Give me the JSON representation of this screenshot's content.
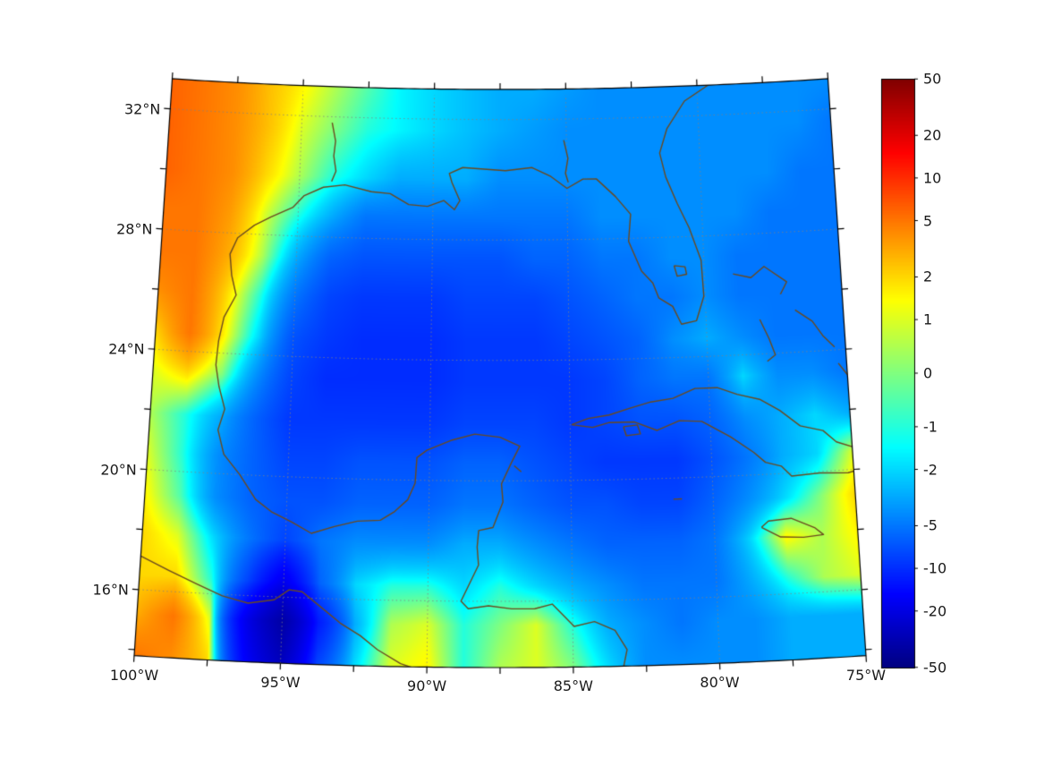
{
  "figure": {
    "background": "#ffffff"
  },
  "chart_data": {
    "type": "heatmap",
    "title": "",
    "lon_range": [
      -100,
      -75
    ],
    "lat_range": [
      13.8,
      33
    ],
    "x_axis": {
      "ticks": [
        {
          "value": -100,
          "label": "100°W"
        },
        {
          "value": -95,
          "label": "95°W"
        },
        {
          "value": -90,
          "label": "90°W"
        },
        {
          "value": -85,
          "label": "85°W"
        },
        {
          "value": -80,
          "label": "80°W"
        },
        {
          "value": -75,
          "label": "75°W"
        }
      ],
      "minor_ticks": [
        -97.5,
        -92.5,
        -87.5,
        -82.5,
        -77.5
      ]
    },
    "y_axis": {
      "ticks": [
        {
          "value": 32,
          "label": "32°N"
        },
        {
          "value": 28,
          "label": "28°N"
        },
        {
          "value": 24,
          "label": "24°N"
        },
        {
          "value": 20,
          "label": "20°N"
        },
        {
          "value": 16,
          "label": "16°N"
        }
      ],
      "minor_ticks": [
        14,
        18,
        22,
        26,
        30
      ]
    },
    "gridline_lons": [
      -95,
      -90,
      -85,
      -80
    ],
    "gridline_lats": [
      16,
      20,
      24,
      28,
      32
    ],
    "colorbar": {
      "scale": "symlog",
      "ticks": [
        {
          "value": 50,
          "label": "50"
        },
        {
          "value": 20,
          "label": "20"
        },
        {
          "value": 10,
          "label": "10"
        },
        {
          "value": 5,
          "label": "5"
        },
        {
          "value": 2,
          "label": "2"
        },
        {
          "value": 1,
          "label": "1"
        },
        {
          "value": 0,
          "label": "0"
        },
        {
          "value": -1,
          "label": "-1"
        },
        {
          "value": -2,
          "label": "-2"
        },
        {
          "value": -5,
          "label": "-5"
        },
        {
          "value": -10,
          "label": "-10"
        },
        {
          "value": -20,
          "label": "-20"
        },
        {
          "value": -50,
          "label": "-50"
        }
      ],
      "colormap": [
        [
          0,
          [
            0,
            0,
            128
          ]
        ],
        [
          0.125,
          [
            0,
            0,
            255
          ]
        ],
        [
          0.375,
          [
            0,
            255,
            255
          ]
        ],
        [
          0.625,
          [
            255,
            255,
            0
          ]
        ],
        [
          0.875,
          [
            255,
            0,
            0
          ]
        ],
        [
          1,
          [
            128,
            0,
            0
          ]
        ]
      ]
    },
    "coast_color": "#6b4a1f",
    "grid": {
      "lons": [
        -100,
        -98.75,
        -97.5,
        -96.25,
        -95,
        -93.75,
        -92.5,
        -91.25,
        -90,
        -88.75,
        -87.5,
        -86.25,
        -85,
        -83.75,
        -82.5,
        -81.25,
        -80,
        -78.75,
        -77.5,
        -76.25,
        -75
      ],
      "lats": [
        13.8,
        15.2,
        16.5,
        17.9,
        19.2,
        20.6,
        21.9,
        23.3,
        24.6,
        26.0,
        27.3,
        28.7,
        30.0,
        31.6,
        33.0
      ],
      "values": [
        [
          5,
          4,
          2,
          -15,
          -28,
          -8,
          -2,
          1,
          1.5,
          -1,
          0.5,
          1,
          0,
          -2,
          -4,
          -4,
          -4,
          -4,
          -3,
          -3,
          -3
        ],
        [
          3,
          5,
          1,
          -18,
          -35,
          -12,
          -3,
          0.5,
          1,
          -1,
          0,
          1,
          -1,
          -3,
          -4,
          -5,
          -4,
          -4,
          -3,
          -3,
          -3
        ],
        [
          2,
          2,
          -1,
          -8,
          -18,
          -6,
          -2,
          -1,
          -1,
          -2,
          -1,
          -2,
          -3,
          -4,
          -5,
          -5,
          -5,
          -3,
          -1,
          0.5,
          1
        ],
        [
          2,
          1,
          -2,
          -5,
          -8,
          -5,
          -4,
          -4,
          -4,
          -3,
          -3,
          -4,
          -5,
          -6,
          -6,
          -6,
          -5,
          -2,
          1.5,
          0.5,
          1.5
        ],
        [
          1.5,
          -0.5,
          -4,
          -6,
          -7,
          -7,
          -6,
          -6,
          -6,
          -5,
          -5,
          -6,
          -7,
          -7,
          -8,
          -8,
          -6,
          -4,
          -2,
          0,
          2
        ],
        [
          1,
          -1,
          -4,
          -6,
          -8,
          -8,
          -7,
          -7,
          -7,
          -6,
          -6,
          -7,
          -8,
          -9,
          -9,
          -9,
          -7,
          -5,
          -3,
          -2,
          1
        ],
        [
          0.5,
          -1,
          -3,
          -6,
          -9,
          -9,
          -9,
          -9,
          -9,
          -8,
          -8,
          -8,
          -9,
          -8,
          -7,
          -7,
          -6,
          -4,
          -3,
          -2,
          -3
        ],
        [
          1,
          2,
          0,
          -4,
          -8,
          -10,
          -10,
          -10,
          -10,
          -9,
          -9,
          -9,
          -9,
          -8,
          -6,
          -5,
          -5,
          -2,
          -4,
          -4,
          -5
        ],
        [
          2,
          5,
          1.5,
          -2,
          -7,
          -9,
          -10,
          -10,
          -10,
          -9,
          -9,
          -9,
          -8,
          -7,
          -6,
          -4,
          -3,
          -4,
          -5,
          -5,
          -5
        ],
        [
          4,
          5,
          2,
          -1,
          -5,
          -8,
          -9,
          -9,
          -9,
          -8,
          -8,
          -8,
          -7,
          -6,
          -5,
          -5,
          -4,
          -5,
          -5,
          -5,
          -5
        ],
        [
          5,
          5,
          3,
          0.5,
          -3,
          -6,
          -7,
          -7,
          -7,
          -7,
          -7,
          -6,
          -6,
          -5,
          -5,
          -4,
          -4,
          -5,
          -5,
          -5,
          -5
        ],
        [
          5,
          5,
          3.5,
          1,
          -1,
          -3,
          -5,
          -5,
          -5,
          -5,
          -5,
          -5,
          -5,
          -4,
          -4,
          -4,
          -4,
          -4,
          -5,
          -5,
          -5
        ],
        [
          6,
          5,
          4,
          2,
          0.5,
          -1,
          -2,
          -3,
          -3,
          -3,
          -4,
          -4,
          -4,
          -4,
          -4,
          -4,
          -4,
          -4,
          -4,
          -5,
          -5
        ],
        [
          6,
          5,
          4,
          2.5,
          1,
          0,
          -1,
          -1.5,
          -2,
          -2.5,
          -3,
          -3.5,
          -4,
          -4,
          -4,
          -4,
          -4,
          -4,
          -4,
          -4,
          -5
        ],
        [
          6,
          5,
          4,
          2.5,
          1.5,
          0.5,
          -0.5,
          -1.5,
          -2,
          -2.5,
          -3,
          -3,
          -3.5,
          -4,
          -4,
          -4,
          -4,
          -4,
          -4,
          -4,
          -4
        ]
      ]
    },
    "coastlines": [
      [
        [
          -78.6,
          33.9
        ],
        [
          -79.2,
          33.2
        ],
        [
          -80.5,
          32.5
        ],
        [
          -81.2,
          31.6
        ],
        [
          -81.5,
          30.8
        ],
        [
          -81.3,
          30.0
        ],
        [
          -80.9,
          29.1
        ],
        [
          -80.5,
          28.3
        ],
        [
          -80.1,
          27.2
        ],
        [
          -80.05,
          26.0
        ],
        [
          -80.35,
          25.2
        ],
        [
          -80.9,
          25.1
        ],
        [
          -81.2,
          25.7
        ],
        [
          -81.7,
          26.0
        ],
        [
          -81.9,
          26.5
        ],
        [
          -82.3,
          26.9
        ],
        [
          -82.75,
          27.9
        ],
        [
          -82.65,
          28.8
        ],
        [
          -83.2,
          29.4
        ],
        [
          -83.9,
          30.0
        ],
        [
          -84.4,
          30.0
        ],
        [
          -85.0,
          29.7
        ],
        [
          -85.6,
          30.1
        ],
        [
          -86.3,
          30.4
        ],
        [
          -87.3,
          30.3
        ],
        [
          -88.1,
          30.35
        ],
        [
          -88.9,
          30.4
        ],
        [
          -89.4,
          30.2
        ],
        [
          -89.3,
          29.9
        ],
        [
          -89.0,
          29.3
        ],
        [
          -89.2,
          29.0
        ],
        [
          -89.6,
          29.3
        ],
        [
          -90.2,
          29.1
        ],
        [
          -90.9,
          29.15
        ],
        [
          -91.6,
          29.5
        ],
        [
          -92.3,
          29.55
        ],
        [
          -93.3,
          29.75
        ],
        [
          -94.1,
          29.65
        ],
        [
          -94.8,
          29.35
        ],
        [
          -95.2,
          28.95
        ],
        [
          -96.0,
          28.6
        ],
        [
          -96.6,
          28.3
        ],
        [
          -97.2,
          27.85
        ],
        [
          -97.45,
          27.3
        ],
        [
          -97.35,
          26.6
        ],
        [
          -97.15,
          25.95
        ],
        [
          -97.55,
          25.2
        ],
        [
          -97.7,
          24.4
        ],
        [
          -97.75,
          23.6
        ],
        [
          -97.6,
          22.9
        ],
        [
          -97.35,
          22.15
        ],
        [
          -97.55,
          21.45
        ],
        [
          -97.3,
          20.65
        ],
        [
          -96.7,
          20.0
        ],
        [
          -96.1,
          19.2
        ],
        [
          -95.5,
          18.8
        ],
        [
          -94.8,
          18.5
        ],
        [
          -94.1,
          18.15
        ],
        [
          -93.3,
          18.4
        ],
        [
          -92.5,
          18.6
        ],
        [
          -91.7,
          18.65
        ],
        [
          -91.2,
          18.95
        ],
        [
          -90.75,
          19.35
        ],
        [
          -90.5,
          19.9
        ],
        [
          -90.45,
          20.75
        ],
        [
          -90.1,
          21.0
        ],
        [
          -89.2,
          21.35
        ],
        [
          -88.4,
          21.55
        ],
        [
          -87.5,
          21.45
        ],
        [
          -86.8,
          21.15
        ],
        [
          -87.1,
          20.6
        ],
        [
          -87.45,
          19.9
        ],
        [
          -87.4,
          19.3
        ],
        [
          -87.75,
          18.45
        ],
        [
          -88.25,
          18.35
        ],
        [
          -88.3,
          17.8
        ],
        [
          -88.25,
          17.2
        ],
        [
          -88.85,
          16.0
        ],
        [
          -88.6,
          15.75
        ],
        [
          -87.9,
          15.85
        ],
        [
          -87.1,
          15.75
        ],
        [
          -86.3,
          15.75
        ],
        [
          -85.7,
          15.9
        ],
        [
          -84.95,
          15.15
        ],
        [
          -84.25,
          15.3
        ],
        [
          -83.55,
          15.0
        ],
        [
          -83.15,
          14.35
        ],
        [
          -83.3,
          13.7
        ]
      ],
      [
        [
          -101.0,
          18.0
        ],
        [
          -100.2,
          17.2
        ],
        [
          -99.0,
          16.7
        ],
        [
          -98.0,
          16.3
        ],
        [
          -97.1,
          15.95
        ],
        [
          -96.2,
          15.75
        ],
        [
          -95.3,
          15.9
        ],
        [
          -94.8,
          16.25
        ],
        [
          -94.35,
          16.2
        ],
        [
          -93.8,
          15.8
        ],
        [
          -93.0,
          15.2
        ],
        [
          -92.3,
          14.8
        ],
        [
          -91.7,
          14.35
        ],
        [
          -90.9,
          13.9
        ],
        [
          -90.1,
          13.65
        ]
      ],
      [
        [
          -84.95,
          21.85
        ],
        [
          -84.35,
          22.05
        ],
        [
          -83.6,
          22.15
        ],
        [
          -82.9,
          22.35
        ],
        [
          -82.1,
          22.55
        ],
        [
          -81.3,
          22.65
        ],
        [
          -80.5,
          22.95
        ],
        [
          -79.7,
          22.95
        ],
        [
          -79.0,
          22.7
        ],
        [
          -78.2,
          22.5
        ],
        [
          -77.5,
          22.1
        ],
        [
          -76.8,
          21.55
        ],
        [
          -76.0,
          21.35
        ],
        [
          -75.55,
          20.95
        ],
        [
          -74.85,
          20.7
        ],
        [
          -74.15,
          20.25
        ],
        [
          -74.5,
          20.05
        ],
        [
          -75.2,
          19.9
        ],
        [
          -76.2,
          19.95
        ],
        [
          -77.2,
          19.9
        ],
        [
          -77.55,
          20.25
        ],
        [
          -78.1,
          20.4
        ],
        [
          -78.5,
          20.75
        ],
        [
          -79.3,
          21.3
        ],
        [
          -80.3,
          21.85
        ],
        [
          -81.1,
          21.9
        ],
        [
          -81.9,
          21.6
        ],
        [
          -82.7,
          21.9
        ],
        [
          -83.6,
          21.9
        ],
        [
          -84.2,
          21.75
        ],
        [
          -84.95,
          21.85
        ]
      ],
      [
        [
          -83.1,
          21.75
        ],
        [
          -82.6,
          21.8
        ],
        [
          -82.5,
          21.5
        ],
        [
          -83.0,
          21.45
        ],
        [
          -83.1,
          21.75
        ]
      ],
      [
        [
          -78.35,
          18.25
        ],
        [
          -78.1,
          18.45
        ],
        [
          -77.3,
          18.5
        ],
        [
          -76.5,
          18.15
        ],
        [
          -76.2,
          17.9
        ],
        [
          -76.9,
          17.85
        ],
        [
          -77.7,
          17.9
        ],
        [
          -78.35,
          18.25
        ]
      ],
      [
        [
          -78.95,
          26.7
        ],
        [
          -78.3,
          26.55
        ],
        [
          -77.8,
          26.9
        ],
        [
          -77.0,
          26.35
        ],
        [
          -77.25,
          25.95
        ]
      ],
      [
        [
          -78.05,
          25.15
        ],
        [
          -77.75,
          24.5
        ],
        [
          -77.55,
          23.95
        ],
        [
          -77.85,
          23.75
        ]
      ],
      [
        [
          -76.75,
          25.4
        ],
        [
          -76.15,
          25.0
        ],
        [
          -75.8,
          24.5
        ],
        [
          -75.4,
          24.1
        ]
      ],
      [
        [
          -75.3,
          23.55
        ],
        [
          -75.0,
          23.15
        ]
      ],
      [
        [
          -81.1,
          27.05
        ],
        [
          -80.7,
          27.0
        ],
        [
          -80.65,
          26.75
        ],
        [
          -81.0,
          26.7
        ],
        [
          -81.1,
          27.05
        ]
      ],
      [
        [
          -93.85,
          31.8
        ],
        [
          -93.7,
          31.2
        ],
        [
          -93.75,
          30.7
        ],
        [
          -93.65,
          30.2
        ],
        [
          -93.8,
          29.85
        ]
      ],
      [
        [
          -85.1,
          31.3
        ],
        [
          -84.95,
          30.7
        ],
        [
          -85.05,
          30.2
        ],
        [
          -84.95,
          29.9
        ]
      ],
      [
        [
          -87.0,
          20.5
        ],
        [
          -86.75,
          20.3
        ]
      ],
      [
        [
          -81.4,
          19.3
        ],
        [
          -81.1,
          19.3
        ]
      ]
    ]
  }
}
